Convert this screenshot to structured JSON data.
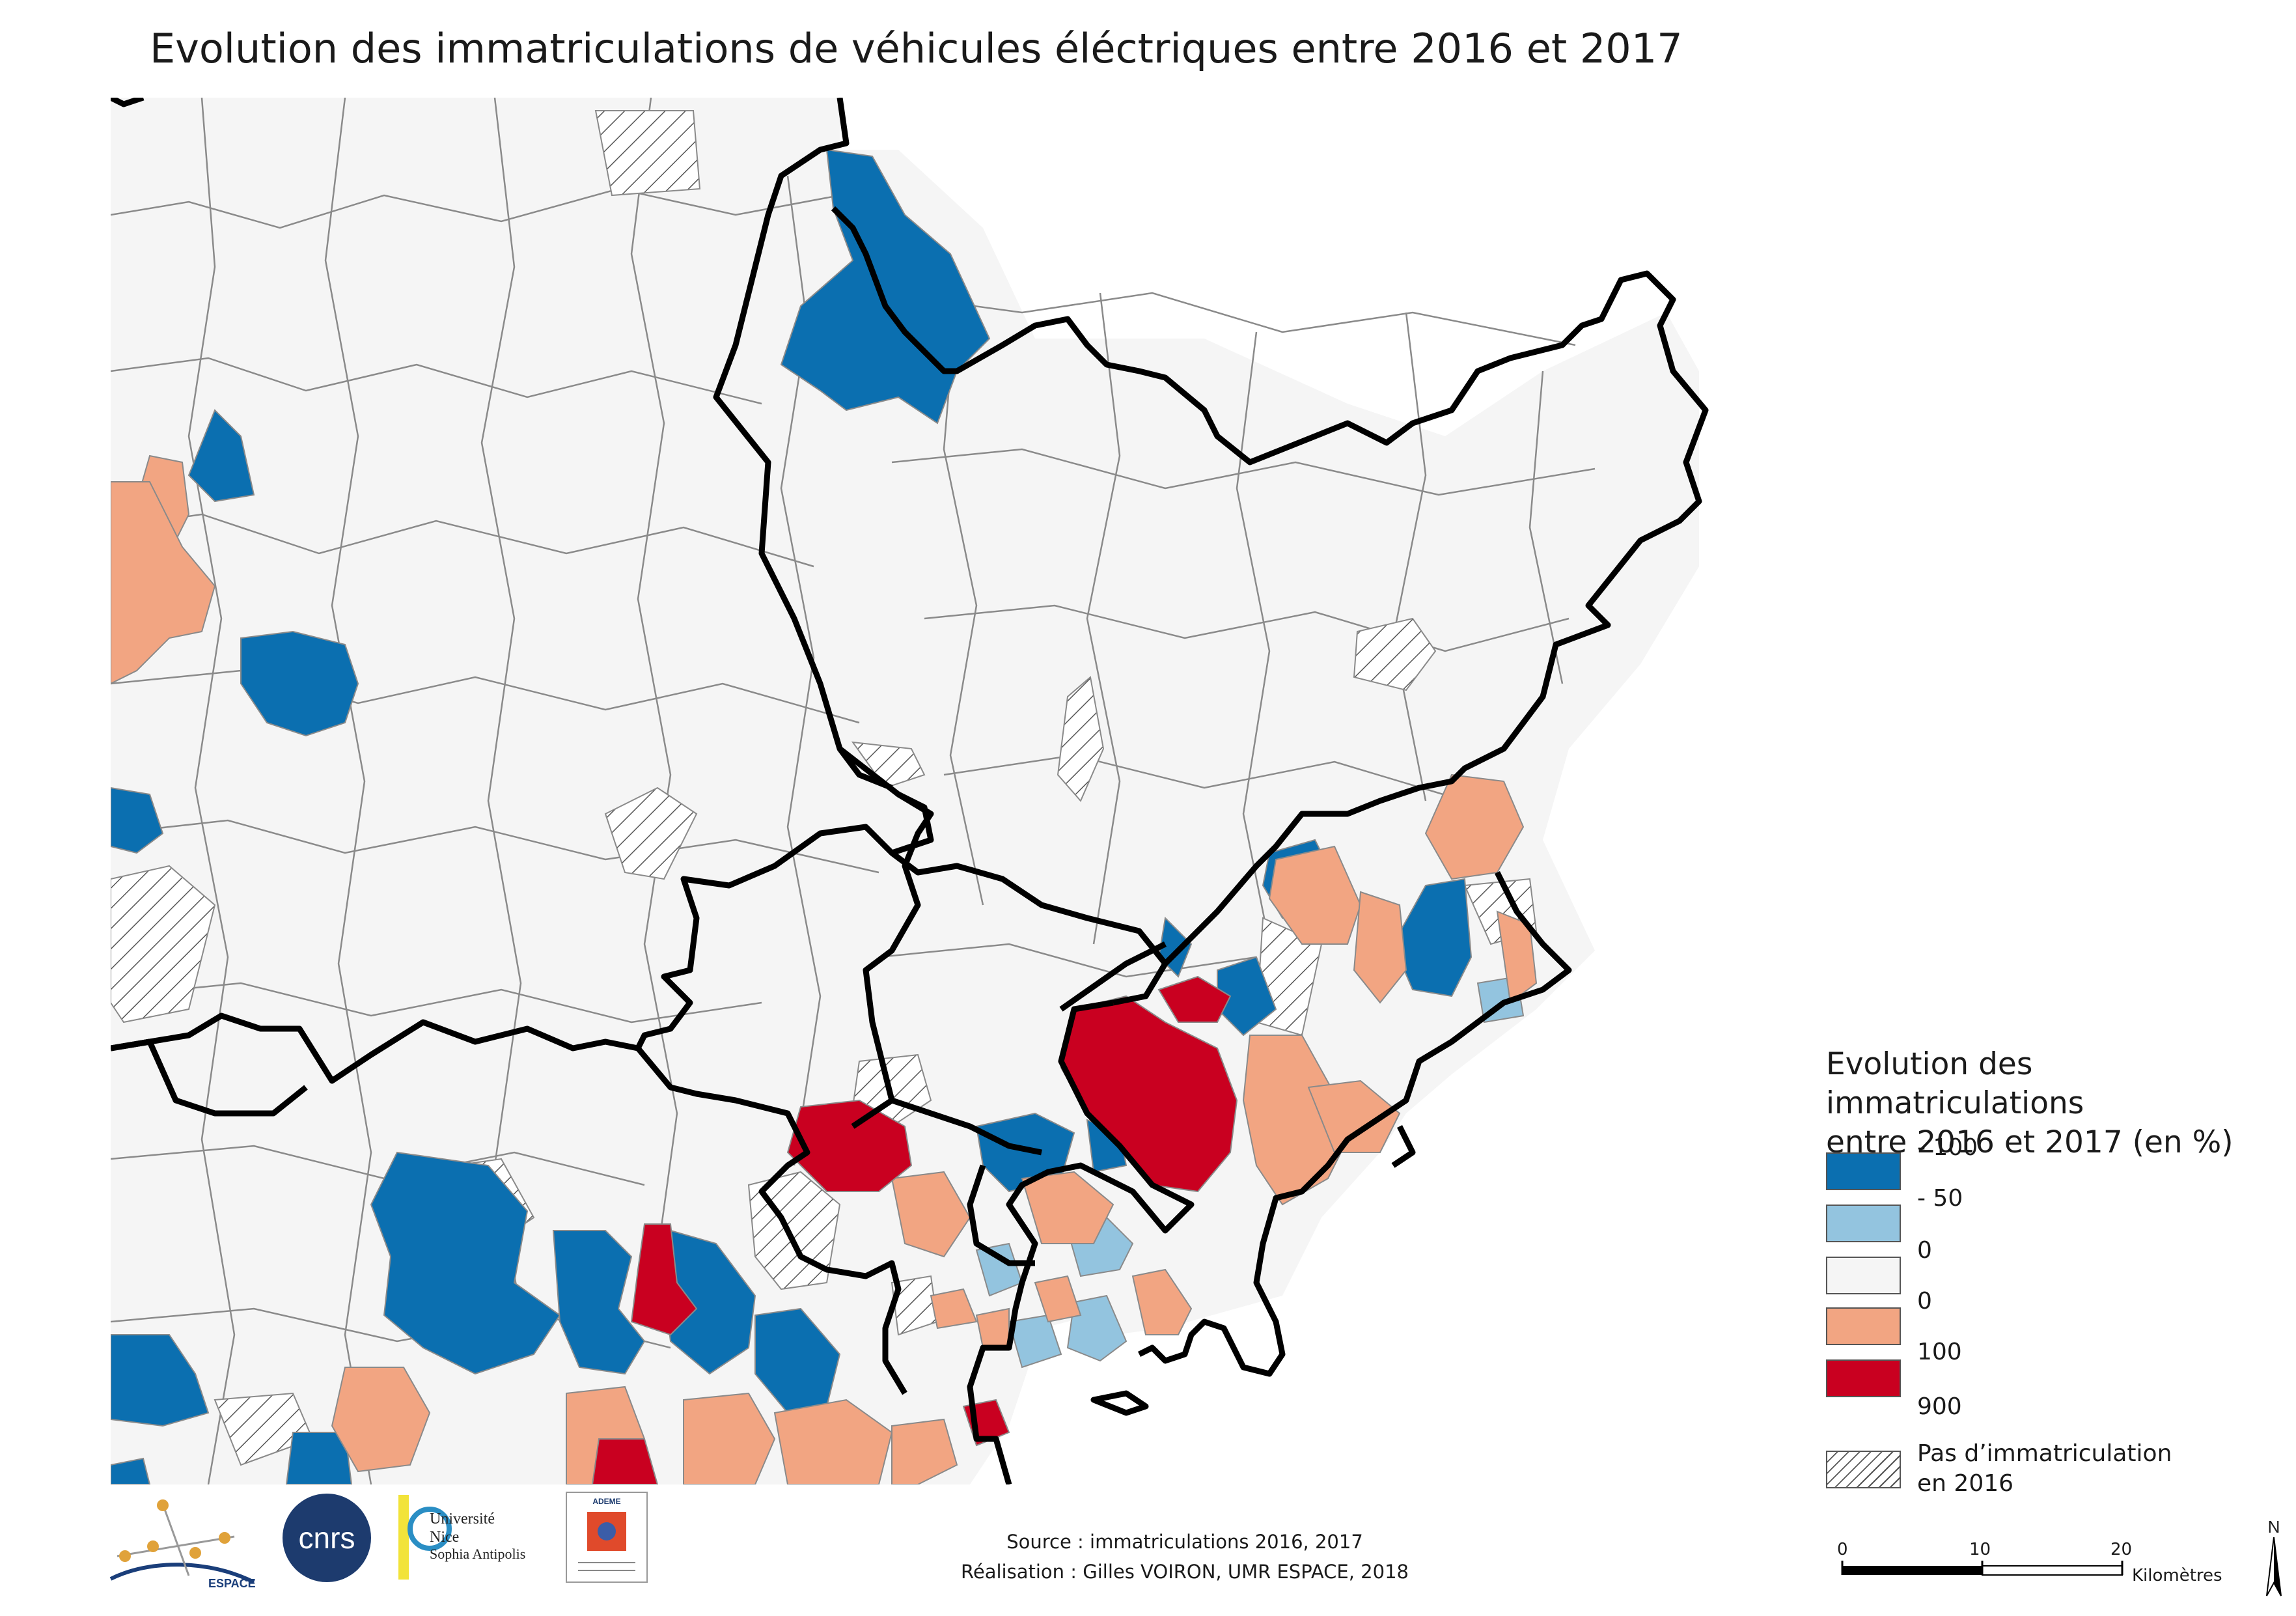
{
  "title": "Evolution des immatriculations de véhicules éléctriques entre 2016 et 2017",
  "legend": {
    "title_line1": "Evolution des immatriculations",
    "title_line2": "entre 2016 et 2017 (en %)",
    "classes": [
      {
        "label": "- 100",
        "color": "#0b6fb0"
      },
      {
        "label": "- 50",
        "color": "#93c4df"
      },
      {
        "label": "0",
        "color": "#f5f5f5"
      },
      {
        "label": "0",
        "color": "#f2a582"
      },
      {
        "label": "100",
        "color": "#c90020"
      },
      {
        "label": "900",
        "color": null
      }
    ],
    "no_data_line1": "Pas d’immatriculation",
    "no_data_line2": "en 2016"
  },
  "scale": {
    "t0": "0",
    "t1": "10",
    "t2": "20",
    "unit": "Kilomètres"
  },
  "north_label": "N",
  "source": "Source : immatriculations 2016, 2017",
  "author": "Réalisation : Gilles VOIRON, UMR ESPACE, 2018",
  "logos": {
    "espace_text": "ESPACE",
    "cnrs_text": "cnrs",
    "unice_line1": "Université",
    "unice_line2": "Nice",
    "unice_line3": "Sophia Antipolis",
    "ademe_text": "ADEME"
  }
}
